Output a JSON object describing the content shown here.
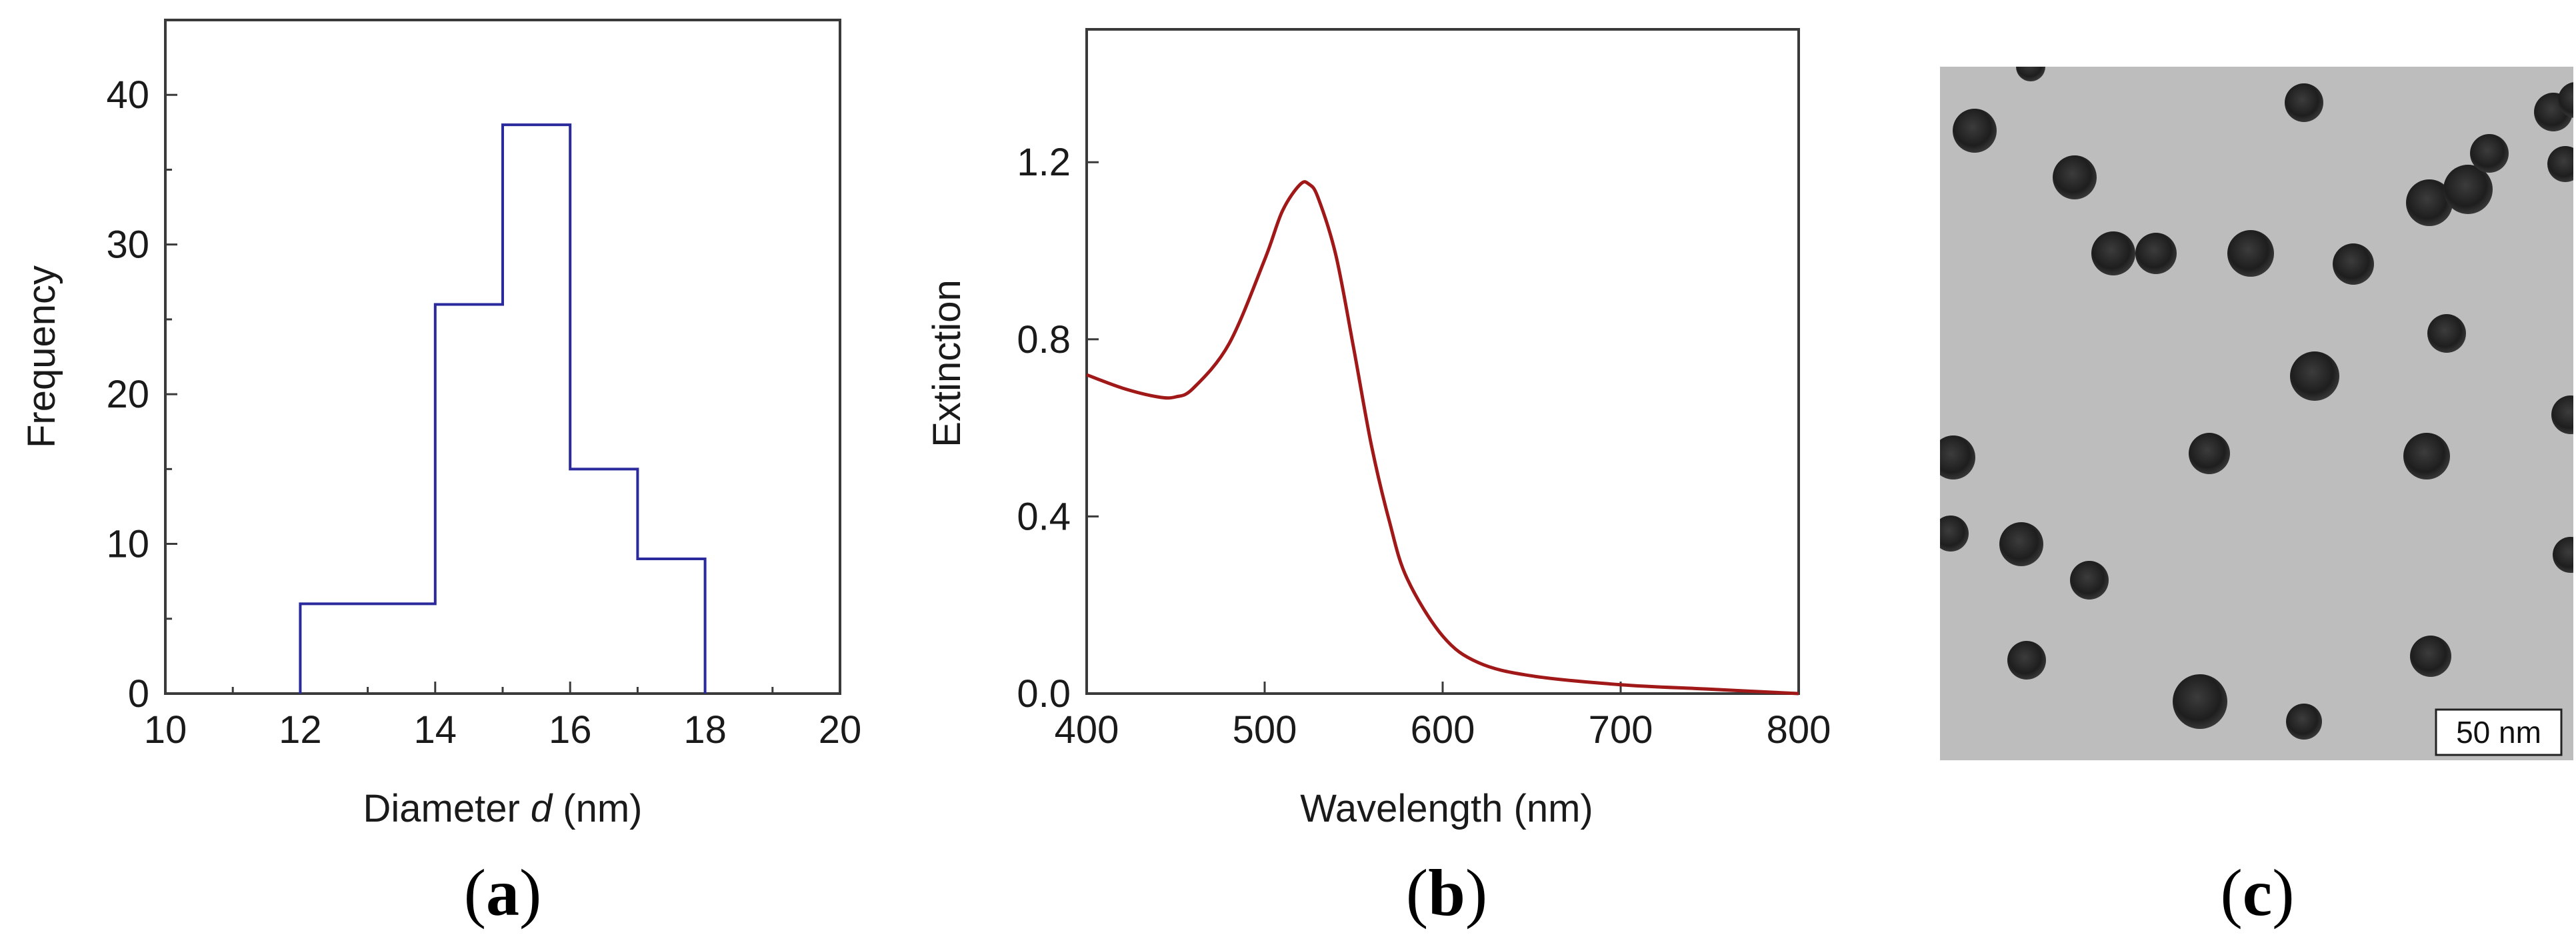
{
  "panel_labels": {
    "a": "a",
    "b": "b",
    "c": "c"
  },
  "chart_data": [
    {
      "type": "bar",
      "style": "step-histogram",
      "panel": "a",
      "bins": [
        [
          12,
          14
        ],
        [
          14,
          15
        ],
        [
          15,
          16
        ],
        [
          16,
          17
        ],
        [
          17,
          18
        ]
      ],
      "values": [
        6,
        26,
        38,
        15,
        9
      ],
      "xlabel_prefix": "Diameter ",
      "xlabel_var": "d",
      "xlabel_suffix": " (nm)",
      "ylabel": "Frequency",
      "xlim": [
        10,
        20
      ],
      "ylim": [
        0,
        45
      ],
      "xticks": [
        10,
        12,
        14,
        16,
        18,
        20
      ],
      "yticks": [
        0,
        10,
        20,
        30,
        40
      ],
      "color": "#2a2a9c"
    },
    {
      "type": "line",
      "panel": "b",
      "x": [
        400,
        420,
        440,
        450,
        460,
        480,
        500,
        510,
        520,
        525,
        530,
        540,
        550,
        560,
        570,
        580,
        600,
        620,
        650,
        700,
        750,
        800
      ],
      "y": [
        0.72,
        0.69,
        0.67,
        0.67,
        0.69,
        0.79,
        0.98,
        1.09,
        1.15,
        1.15,
        1.12,
        0.99,
        0.78,
        0.56,
        0.39,
        0.26,
        0.13,
        0.07,
        0.04,
        0.02,
        0.01,
        0.0
      ],
      "xlabel": "Wavelength (nm)",
      "ylabel": "Extinction",
      "xlim": [
        400,
        800
      ],
      "ylim": [
        0.0,
        1.5
      ],
      "xticks": [
        400,
        500,
        600,
        700,
        800
      ],
      "yticks": [
        "0.0",
        "0.4",
        "0.8",
        "1.2"
      ],
      "color": "#a01818"
    }
  ],
  "tem": {
    "scale_bar": "50 nm",
    "background": "#bdbdbd"
  }
}
